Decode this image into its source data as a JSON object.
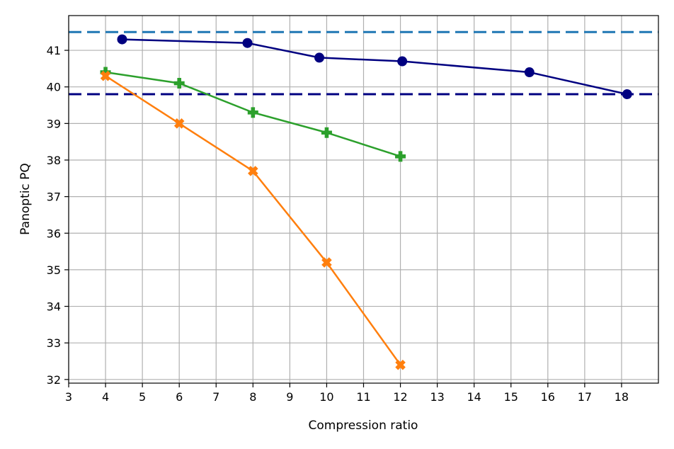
{
  "chart_data": {
    "type": "line",
    "title": "",
    "xlabel": "Compression ratio",
    "ylabel": "Panoptic PQ",
    "xlim": [
      3,
      19
    ],
    "ylim": [
      31.9,
      41.95
    ],
    "xticks": [
      3,
      4,
      5,
      6,
      7,
      8,
      9,
      10,
      11,
      12,
      13,
      14,
      15,
      16,
      17,
      18
    ],
    "yticks": [
      32,
      33,
      34,
      35,
      36,
      37,
      38,
      39,
      40,
      41
    ],
    "grid": true,
    "legend": "none",
    "series": [
      {
        "color": "#000080",
        "marker": "circle",
        "points": [
          [
            4.45,
            41.3
          ],
          [
            7.85,
            41.2
          ],
          [
            9.8,
            40.8
          ],
          [
            12.05,
            40.7
          ],
          [
            15.5,
            40.4
          ],
          [
            18.15,
            39.8
          ]
        ]
      },
      {
        "color": "#2ca02c",
        "marker": "plus",
        "points": [
          [
            4,
            40.4
          ],
          [
            6,
            40.1
          ],
          [
            8,
            39.3
          ],
          [
            10,
            38.75
          ],
          [
            12,
            38.1
          ]
        ]
      },
      {
        "color": "#ff7f0e",
        "marker": "x",
        "points": [
          [
            4,
            40.3
          ],
          [
            6,
            39.0
          ],
          [
            8,
            37.7
          ],
          [
            10,
            35.2
          ],
          [
            12,
            32.4
          ]
        ]
      }
    ],
    "reference_lines": [
      {
        "y": 41.5,
        "color": "#1f77b4",
        "style": "dashed"
      },
      {
        "y": 39.8,
        "color": "#000080",
        "style": "dashed"
      }
    ]
  }
}
